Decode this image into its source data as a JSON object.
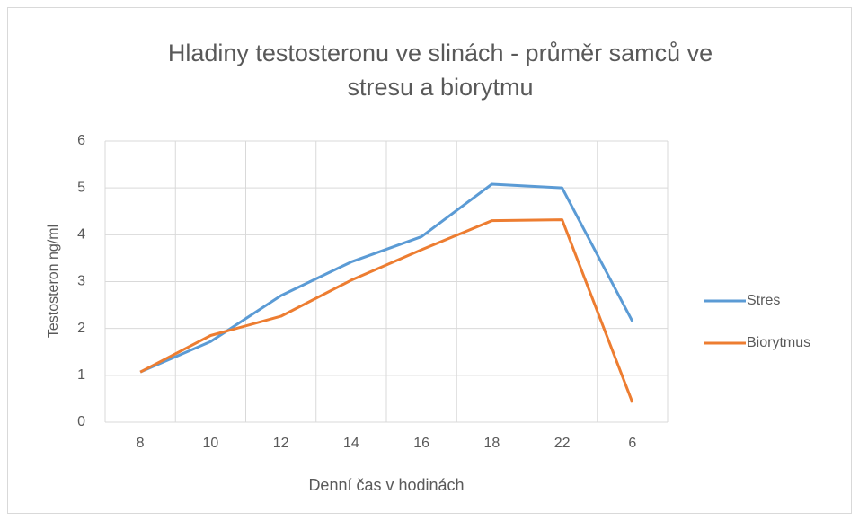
{
  "chart_data": {
    "type": "line",
    "title": "Hladiny testosteronu ve slinách - průměr samců ve stresu a biorytmu",
    "x_label": "Denní čas v hodinách",
    "y_label": "Testosteron ng/ml",
    "categories": [
      "8",
      "10",
      "12",
      "14",
      "16",
      "18",
      "22",
      "6"
    ],
    "series": [
      {
        "name": "Stres",
        "color": "#5b9bd5",
        "values": [
          1.07,
          1.72,
          2.7,
          3.42,
          3.96,
          5.08,
          5.0,
          2.15
        ]
      },
      {
        "name": "Biorytmus",
        "color": "#ed7d31",
        "values": [
          1.07,
          1.85,
          2.26,
          3.03,
          3.68,
          4.3,
          4.32,
          0.42
        ]
      }
    ],
    "ylim": [
      0,
      6
    ],
    "yticks": [
      0,
      1,
      2,
      3,
      4,
      5,
      6
    ],
    "grid": true,
    "legend": "right"
  }
}
